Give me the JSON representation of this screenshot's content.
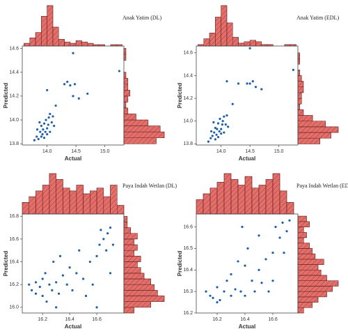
{
  "chart_data": [
    {
      "type": "scatter",
      "title": "Anak Yatim (DL)",
      "xlabel": "Actual",
      "ylabel": "Predicted",
      "color": "#1f5fa8",
      "hist_color": "#e46e6a",
      "x": [
        13.78,
        13.82,
        13.85,
        13.88,
        13.9,
        13.9,
        13.92,
        13.93,
        13.95,
        13.95,
        13.97,
        13.98,
        14.0,
        14.0,
        14.02,
        14.03,
        14.05,
        14.05,
        14.08,
        14.1,
        14.12,
        13.87,
        13.83,
        14.15,
        14.0,
        14.3,
        14.35,
        14.4,
        14.48,
        14.45,
        14.55,
        14.7,
        14.45,
        15.25
      ],
      "y": [
        13.83,
        13.86,
        13.84,
        13.9,
        13.86,
        13.95,
        13.88,
        13.92,
        13.85,
        13.97,
        13.9,
        14.0,
        13.93,
        13.88,
        13.96,
        14.02,
        13.9,
        14.05,
        13.98,
        14.03,
        13.95,
        13.98,
        13.92,
        14.12,
        14.25,
        14.3,
        14.32,
        14.29,
        14.3,
        14.2,
        14.18,
        14.22,
        14.56,
        14.41
      ],
      "xlim": [
        13.57,
        15.33
      ],
      "ylim": [
        13.79,
        14.62
      ],
      "xticks": [
        {
          "value": 14,
          "label": "14.0"
        },
        14.5,
        {
          "value": 15,
          "label": "15.0"
        }
      ],
      "yticks": [
        13.8,
        {
          "value": 14,
          "label": "14.0"
        },
        14.2,
        14.4,
        14.6
      ],
      "x_hist": {
        "bins": [
          13.6,
          13.7,
          13.8,
          13.9,
          14.0,
          14.1,
          14.2,
          14.3,
          14.4,
          14.5,
          14.6,
          14.7,
          14.8,
          14.9,
          15.0,
          15.1,
          15.2,
          15.3
        ],
        "counts": [
          2,
          6,
          10,
          22,
          30,
          14,
          5,
          3,
          2,
          4,
          3,
          2,
          1,
          1,
          0,
          1,
          1
        ]
      },
      "y_hist": {
        "bins": [
          13.8,
          13.85,
          13.9,
          13.95,
          14.0,
          14.05,
          14.1,
          14.15,
          14.2,
          14.25,
          14.3,
          14.35,
          14.4,
          14.45,
          14.5,
          14.55,
          14.6
        ],
        "counts": [
          16,
          20,
          18,
          12,
          6,
          2,
          1,
          2,
          3,
          2,
          2,
          1,
          0,
          0,
          1,
          1
        ]
      }
    },
    {
      "type": "scatter",
      "title": "Anak Yatim (EDL)",
      "xlabel": "Actual",
      "ylabel": "Predicted",
      "color": "#1f5fa8",
      "hist_color": "#e46e6a",
      "x": [
        13.78,
        13.82,
        13.85,
        13.88,
        13.9,
        13.9,
        13.92,
        13.93,
        13.95,
        13.95,
        13.97,
        13.98,
        14.0,
        14.0,
        14.02,
        14.03,
        14.05,
        14.05,
        14.08,
        14.1,
        14.12,
        13.87,
        13.83,
        14.2,
        14.1,
        14.3,
        14.45,
        14.5,
        14.55,
        14.6,
        14.7,
        14.5,
        15.25
      ],
      "y": [
        13.82,
        13.85,
        13.87,
        13.9,
        13.84,
        13.94,
        13.88,
        13.93,
        13.86,
        13.98,
        13.91,
        14.02,
        13.93,
        13.89,
        13.97,
        14.0,
        13.9,
        14.04,
        13.97,
        14.05,
        13.95,
        13.99,
        13.91,
        14.15,
        14.35,
        14.33,
        14.33,
        14.33,
        14.35,
        14.3,
        14.28,
        14.64,
        14.45
      ],
      "xlim": [
        13.57,
        15.33
      ],
      "ylim": [
        13.79,
        14.66
      ],
      "xticks": [
        {
          "value": 14,
          "label": "14.0"
        },
        14.5,
        {
          "value": 15,
          "label": "15.0"
        }
      ],
      "yticks": [
        13.8,
        {
          "value": 14,
          "label": "14.0"
        },
        14.2,
        14.4,
        14.6
      ],
      "x_hist": {
        "bins": [
          13.6,
          13.7,
          13.8,
          13.9,
          14.0,
          14.1,
          14.2,
          14.3,
          14.4,
          14.5,
          14.6,
          14.7,
          14.8,
          14.9,
          15.0,
          15.1,
          15.2,
          15.3
        ],
        "counts": [
          1,
          5,
          9,
          20,
          28,
          16,
          6,
          2,
          3,
          4,
          3,
          1,
          1,
          0,
          0,
          1,
          1
        ]
      },
      "y_hist": {
        "bins": [
          13.8,
          13.85,
          13.9,
          13.95,
          14.0,
          14.05,
          14.1,
          14.15,
          14.2,
          14.25,
          14.3,
          14.35,
          14.4,
          14.45,
          14.5,
          14.55,
          14.6
        ],
        "counts": [
          12,
          18,
          22,
          15,
          8,
          3,
          1,
          2,
          2,
          3,
          3,
          2,
          1,
          0,
          1,
          1
        ]
      }
    },
    {
      "type": "scatter",
      "title": "Paya Indah Wetlan (DL)",
      "xlabel": "Actual",
      "ylabel": "Predicted",
      "color": "#1f5fa8",
      "hist_color": "#e46e6a",
      "x": [
        16.1,
        16.12,
        16.15,
        16.18,
        16.2,
        16.2,
        16.22,
        16.23,
        16.25,
        16.27,
        16.28,
        16.3,
        16.32,
        16.33,
        16.35,
        16.38,
        16.4,
        16.42,
        16.45,
        16.47,
        16.5,
        16.52,
        16.55,
        16.57,
        16.6,
        16.6,
        16.62,
        16.65,
        16.67,
        16.68,
        16.7,
        16.7,
        16.72,
        16.63,
        16.15,
        16.3
      ],
      "y": [
        16.2,
        16.15,
        16.12,
        16.18,
        16.25,
        16.1,
        16.3,
        16.05,
        16.2,
        16.15,
        16.4,
        16.22,
        16.12,
        16.45,
        16.28,
        16.2,
        16.35,
        16.15,
        16.3,
        16.5,
        16.25,
        16.1,
        16.4,
        16.2,
        16.0,
        16.45,
        16.55,
        16.6,
        16.5,
        16.65,
        16.7,
        16.3,
        16.55,
        16.68,
        16.22,
        16.0
      ],
      "xlim": [
        16.05,
        16.8
      ],
      "ylim": [
        15.95,
        16.82
      ],
      "xticks": [
        16.2,
        16.4,
        16.6
      ],
      "yticks": [
        {
          "value": 16,
          "label": "16.0"
        },
        16.2,
        16.4,
        16.6,
        16.8
      ],
      "x_hist": {
        "bins": [
          16.05,
          16.1,
          16.15,
          16.2,
          16.25,
          16.3,
          16.35,
          16.4,
          16.45,
          16.5,
          16.55,
          16.6,
          16.65,
          16.7,
          16.75,
          16.8
        ],
        "counts": [
          4,
          6,
          8,
          10,
          14,
          12,
          9,
          8,
          10,
          7,
          8,
          9,
          6,
          10,
          3
        ]
      },
      "y_hist": {
        "bins": [
          15.95,
          16.0,
          16.05,
          16.1,
          16.15,
          16.2,
          16.25,
          16.3,
          16.35,
          16.4,
          16.45,
          16.5,
          16.55,
          16.6,
          16.65,
          16.7,
          16.75,
          16.8
        ],
        "counts": [
          3,
          8,
          12,
          10,
          9,
          8,
          6,
          5,
          4,
          5,
          3,
          4,
          3,
          4,
          2,
          1,
          1
        ]
      }
    },
    {
      "type": "scatter",
      "title": "Paya Indah Wetlan (EDL)",
      "xlabel": "Actual",
      "ylabel": "Predicted",
      "color": "#1f5fa8",
      "hist_color": "#e46e6a",
      "x": [
        16.12,
        16.15,
        16.17,
        16.2,
        16.22,
        16.25,
        16.27,
        16.3,
        16.3,
        16.33,
        16.35,
        16.37,
        16.4,
        16.4,
        16.42,
        16.45,
        16.47,
        16.5,
        16.5,
        16.52,
        16.55,
        16.57,
        16.6,
        16.62,
        16.65,
        16.67,
        16.7,
        16.72,
        16.38,
        16.2,
        16.6,
        16.68
      ],
      "y": [
        16.3,
        16.28,
        16.27,
        16.32,
        16.26,
        16.3,
        16.35,
        16.28,
        16.38,
        16.31,
        16.44,
        16.3,
        16.42,
        16.28,
        16.5,
        16.35,
        16.3,
        16.4,
        16.56,
        16.34,
        16.45,
        16.3,
        16.48,
        16.6,
        16.55,
        16.62,
        16.58,
        16.63,
        16.6,
        16.25,
        16.35,
        16.48
      ],
      "xlim": [
        16.05,
        16.78
      ],
      "ylim": [
        16.2,
        16.66
      ],
      "xticks": [
        16.2,
        16.4,
        16.6
      ],
      "yticks": [
        16.2,
        16.3,
        16.4,
        16.5,
        16.6
      ],
      "x_hist": {
        "bins": [
          16.05,
          16.1,
          16.15,
          16.2,
          16.25,
          16.3,
          16.35,
          16.4,
          16.45,
          16.5,
          16.55,
          16.6,
          16.65,
          16.7,
          16.75
        ],
        "counts": [
          5,
          7,
          9,
          11,
          14,
          12,
          10,
          13,
          9,
          10,
          12,
          14,
          8,
          4
        ]
      },
      "y_hist": {
        "bins": [
          16.2,
          16.225,
          16.25,
          16.275,
          16.3,
          16.325,
          16.35,
          16.375,
          16.4,
          16.425,
          16.45,
          16.475,
          16.5,
          16.525,
          16.55,
          16.575,
          16.6,
          16.625,
          16.65
        ],
        "counts": [
          2,
          5,
          7,
          10,
          12,
          14,
          10,
          8,
          7,
          9,
          6,
          5,
          4,
          2,
          3,
          2,
          4,
          3
        ]
      }
    }
  ]
}
